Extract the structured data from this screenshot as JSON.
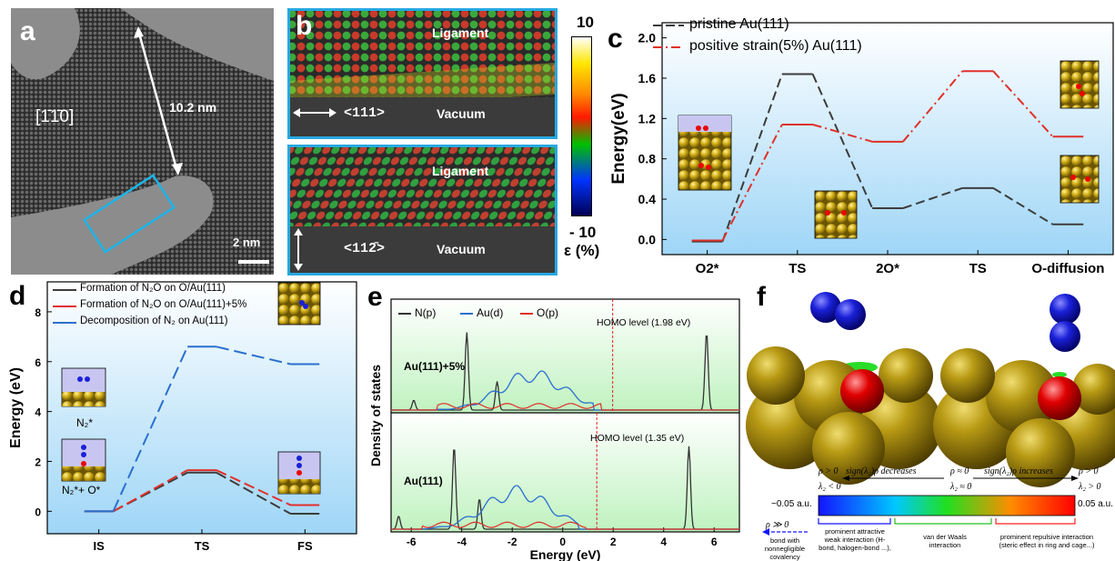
{
  "panel_labels": {
    "a": "a",
    "b": "b",
    "c": "c",
    "d": "d",
    "e": "e",
    "f": "f"
  },
  "panel_a": {
    "orientation": "[1̄1̄0]",
    "distance": "10.2 nm",
    "scalebar": "2 nm"
  },
  "panel_b": {
    "top": {
      "region": "Ligament",
      "vacuum": "Vacuum",
      "direction": "<111>"
    },
    "bottom": {
      "region": "Ligament",
      "vacuum": "Vacuum",
      "direction": "<112̄>"
    },
    "colorbar": {
      "max": "10",
      "min": "- 10",
      "unit": "ε (%)"
    },
    "colors": [
      "#ffffff",
      "#ffe600",
      "#ff8a00",
      "#ff1a00",
      "#00c000",
      "#0033ff",
      "#000050"
    ]
  },
  "chart_data": [
    {
      "panel": "c",
      "type": "line",
      "categories": [
        "O2*",
        "TS",
        "2O*",
        "TS",
        "O-diffusion"
      ],
      "ylabel": "Energy(eV)",
      "xlabel": "",
      "ylim": [
        -0.15,
        2.15
      ],
      "yticks": [
        "0.0",
        "0.4",
        "0.8",
        "1.2",
        "1.6",
        "2.0"
      ],
      "series": [
        {
          "name": "pristine Au(111)",
          "color": "#3c3c3c",
          "values": [
            -0.02,
            1.64,
            0.31,
            0.51,
            0.15
          ]
        },
        {
          "name": "positive strain(5%) Au(111)",
          "color": "#e0302a",
          "values": [
            -0.01,
            1.14,
            0.97,
            1.67,
            1.02
          ]
        }
      ]
    },
    {
      "panel": "d",
      "type": "line",
      "categories": [
        "IS",
        "TS",
        "FS"
      ],
      "ylabel": "Energy (eV)",
      "xlabel": "",
      "ylim": [
        -0.9,
        9.2
      ],
      "yticks": [
        "0",
        "2",
        "4",
        "6",
        "8"
      ],
      "series": [
        {
          "name": "Formation of N₂O on O/Au(111)",
          "color": "#3c3c3c",
          "values": [
            0,
            1.55,
            -0.1
          ]
        },
        {
          "name": "Formation of N₂O on O/Au(111)+5%",
          "color": "#e0302a",
          "values": [
            0,
            1.65,
            0.25
          ]
        },
        {
          "name": "Decomposition of N₂ on Au(111)",
          "color": "#2a6fd0",
          "values": [
            0,
            6.6,
            5.9
          ]
        }
      ],
      "annotations": [
        "N₂*",
        "N₂*+ O*"
      ]
    },
    {
      "panel": "e",
      "type": "line",
      "xlabel": "Energy (eV)",
      "ylabel": "Density of states",
      "xlim": [
        -6.8,
        7.0
      ],
      "xticks": [
        "-6",
        "-4",
        "-2",
        "0",
        "2",
        "4",
        "6"
      ],
      "legend": [
        "N(p)",
        "Au(d)",
        "O(p)"
      ],
      "subplots": [
        {
          "label": "Au(111)+5%",
          "homo": {
            "text": "HOMO level (1.98 eV)",
            "x": 1.98
          },
          "npeaks": [
            [
              -5.9,
              0.12
            ],
            [
              -3.8,
              0.95
            ],
            [
              -2.6,
              0.35
            ],
            [
              5.7,
              0.95
            ]
          ]
        },
        {
          "label": "Au(111)",
          "homo": {
            "text": "HOMO level (1.35 eV)",
            "x": 1.35
          },
          "npeaks": [
            [
              -6.5,
              0.15
            ],
            [
              -4.3,
              0.95
            ],
            [
              -3.3,
              0.35
            ],
            [
              5.0,
              0.95
            ]
          ]
        }
      ]
    }
  ],
  "panel_f": {
    "scale": {
      "min": "−0.05 a.u.",
      "max": "0.05 a.u.",
      "left_cond1": "ρ > 0",
      "left_cond2": "λ₂ < 0",
      "mid_cond1": "ρ ≈ 0",
      "mid_cond2": "λ₂ ≈ 0",
      "right_cond1": "ρ > 0",
      "right_cond2": "λ₂ > 0",
      "decreases": "sign(λ₂)ρ decreases",
      "increases": "sign(λ₂)ρ increases",
      "rho_gg": "ρ ≫ 0",
      "covalent": "bond with nonnegligible covalency",
      "attractive": "prominent attractive weak interaction (H-bond, halogen-bond ...),",
      "vdw": "van der Waals interaction",
      "repulsive": "prominent repulsive interaction (steric effect in ring and cage...)"
    }
  }
}
